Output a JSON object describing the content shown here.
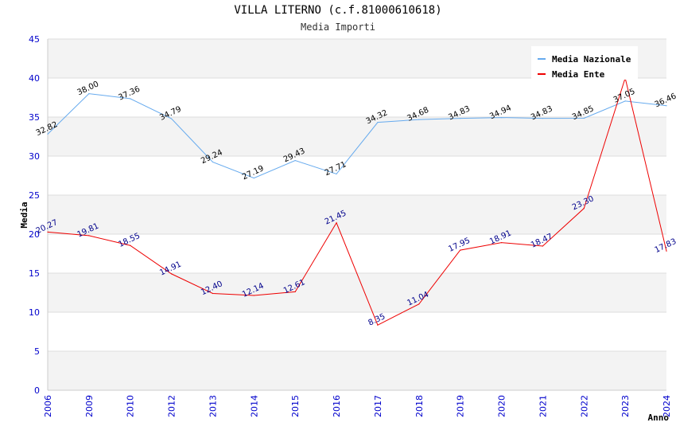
{
  "chart_data": {
    "type": "line",
    "title": "VILLA LITERNO (c.f.81000610618)",
    "subtitle": "Media Importi",
    "xlabel": "Anno",
    "ylabel": "Media",
    "ylim": [
      0,
      45
    ],
    "yticks": [
      0,
      5,
      10,
      15,
      20,
      25,
      30,
      35,
      40,
      45
    ],
    "categories": [
      "2006",
      "2009",
      "2010",
      "2012",
      "2013",
      "2014",
      "2015",
      "2016",
      "2017",
      "2018",
      "2019",
      "2020",
      "2021",
      "2022",
      "2023",
      "2024"
    ],
    "series": [
      {
        "name": "Media Nazionale",
        "color": "#66aaee",
        "values": [
          32.82,
          38.0,
          37.36,
          34.79,
          29.24,
          27.19,
          29.43,
          27.71,
          34.32,
          34.68,
          34.83,
          34.94,
          34.83,
          34.85,
          37.05,
          36.46
        ],
        "labels": [
          "32.82",
          "38.00",
          "37.36",
          "34.79",
          "29.24",
          "27.19",
          "29.43",
          "27.71",
          "34.32",
          "34.68",
          "34.83",
          "34.94",
          "34.83",
          "34.85",
          "37.05",
          "36.46"
        ]
      },
      {
        "name": "Media Ente",
        "color": "#ee0000",
        "values": [
          20.27,
          19.81,
          18.55,
          14.91,
          12.4,
          12.14,
          12.61,
          21.45,
          8.35,
          11.04,
          17.95,
          18.91,
          18.47,
          23.3,
          40.0,
          17.83
        ],
        "labels": [
          "20.27",
          "19.81",
          "18.55",
          "14.91",
          "12.40",
          "12.14",
          "12.61",
          "21.45",
          "8.35",
          "11.04",
          "17.95",
          "18.91",
          "18.47",
          "23.30",
          "",
          "17.83"
        ]
      }
    ],
    "legend_position": "top-right"
  }
}
